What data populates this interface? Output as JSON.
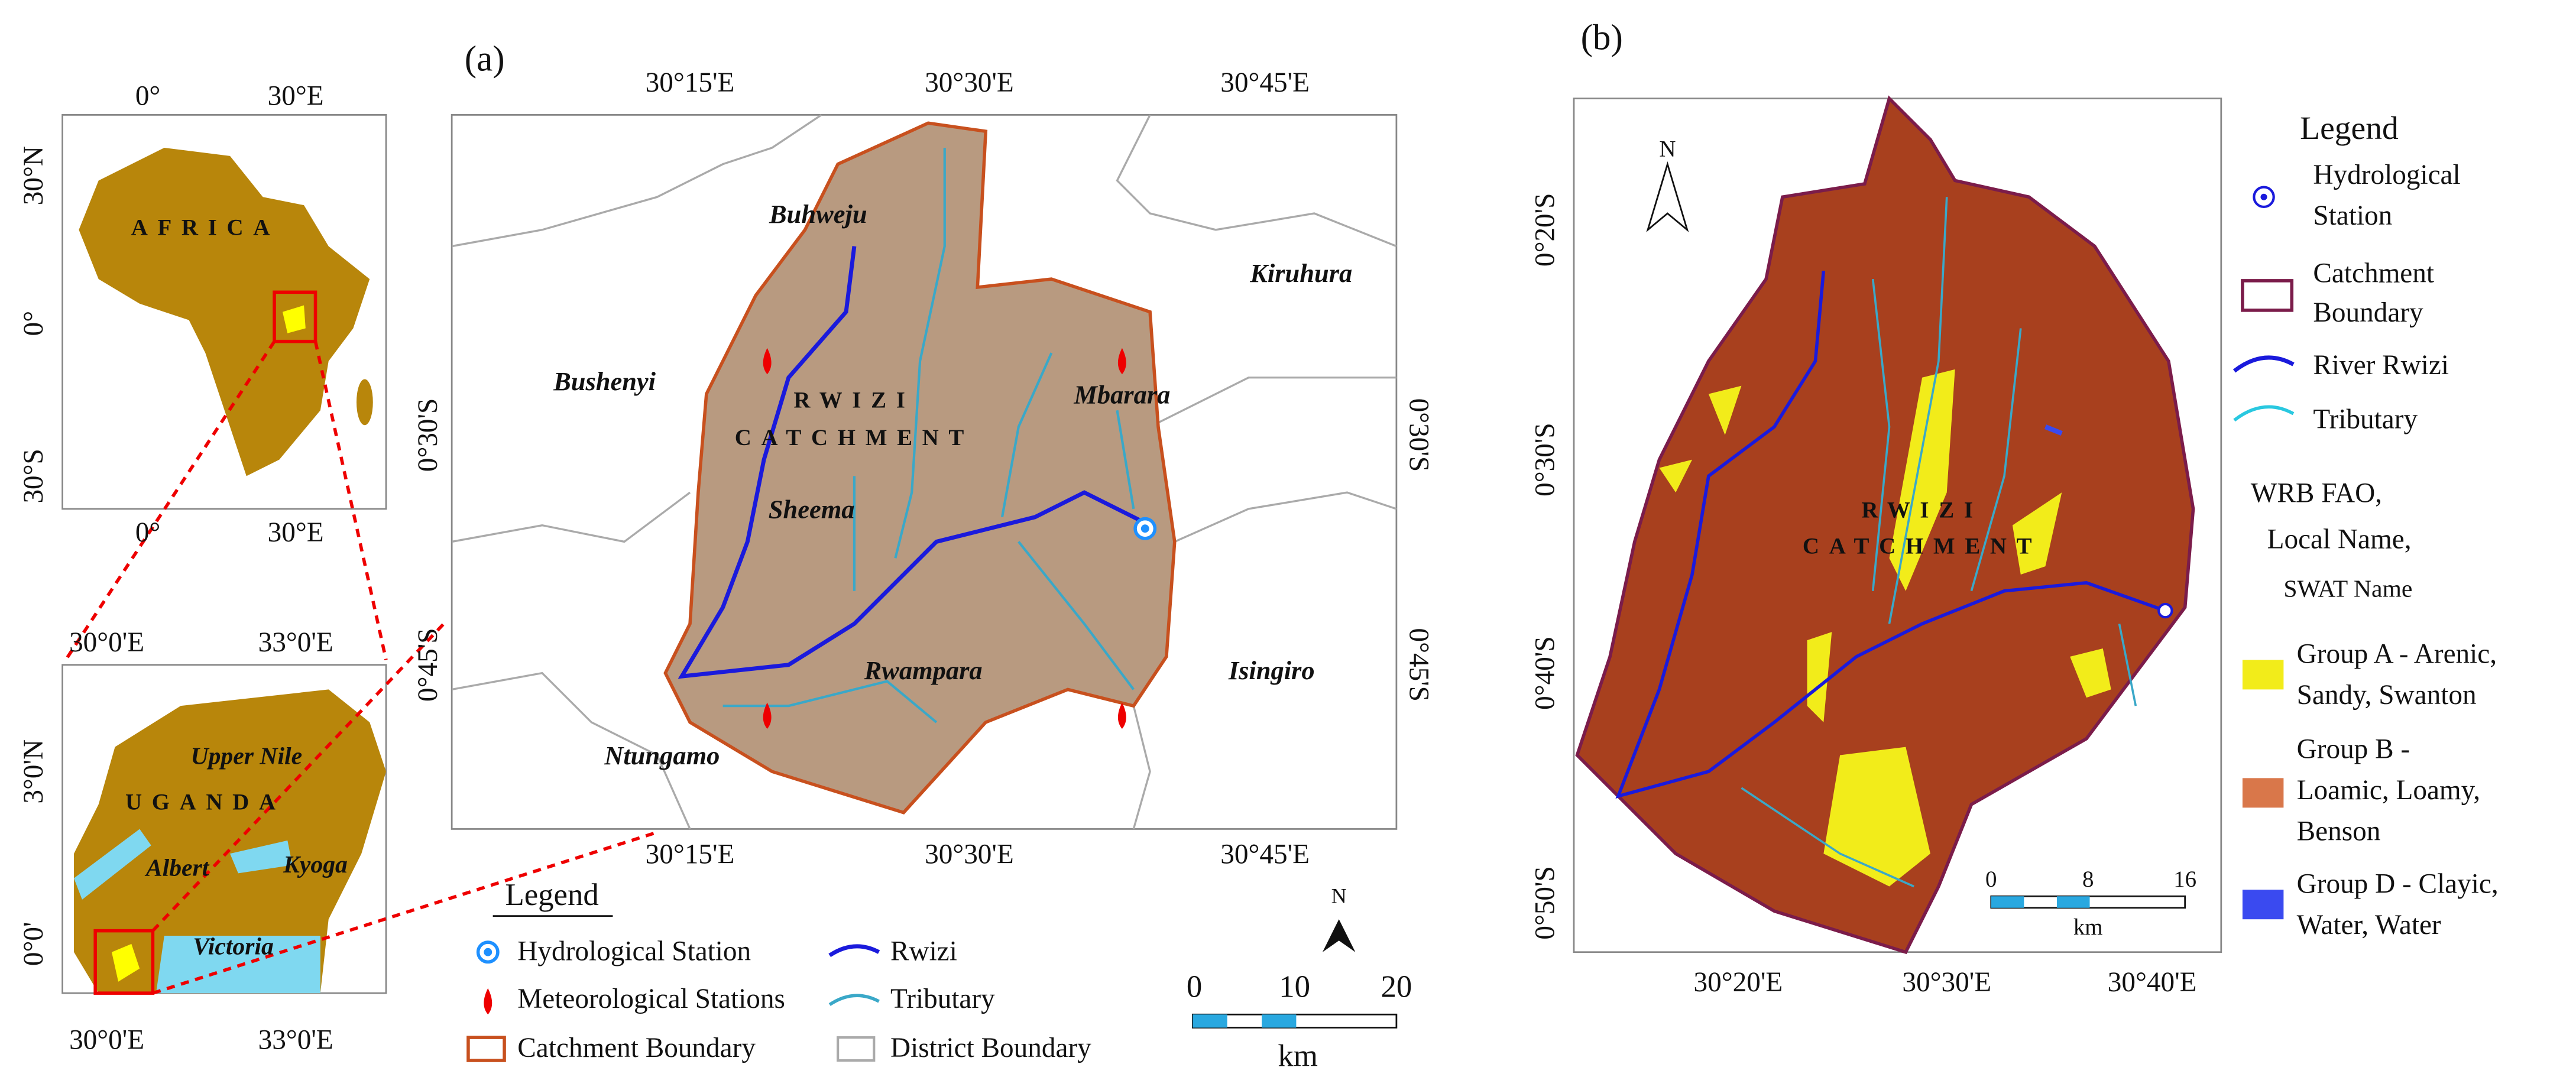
{
  "panel_a": {
    "label": "(a)",
    "africa_inset": {
      "top_ticks": [
        "0°",
        "30°E"
      ],
      "bottom_ticks": [
        "0°",
        "30°E"
      ],
      "left_ticks": [
        "30°N",
        "0°",
        "30°S"
      ],
      "label": "AFRICA"
    },
    "uganda_inset": {
      "top_ticks": [
        "30°0'E",
        "33°0'E"
      ],
      "bottom_ticks": [
        "30°0'E",
        "33°0'E"
      ],
      "left_ticks": [
        "3°0'N",
        "0°0'"
      ],
      "country": "UGANDA",
      "places": [
        "Upper Nile",
        "Albert",
        "Kyoga",
        "Victoria"
      ]
    },
    "main_map": {
      "top_ticks": [
        "30°15'E",
        "30°30'E",
        "30°45'E"
      ],
      "bottom_ticks": [
        "30°15'E",
        "30°30'E",
        "30°45'E"
      ],
      "left_ticks": [
        "0°30'S",
        "0°45'S"
      ],
      "right_ticks": [
        "0°30'S",
        "0°45'S"
      ],
      "districts": [
        "Buhweju",
        "Kiruhura",
        "Bushenyi",
        "Mbarara",
        "Sheema",
        "Rwampara",
        "Isingiro",
        "Ntungamo"
      ],
      "catchment_label": [
        "RWIZI",
        "CATCHMENT"
      ],
      "north": "N"
    },
    "legend": {
      "title": "Legend",
      "items": [
        "Hydrological Station",
        "Rwizi",
        "Meteorological Stations",
        "Tributary",
        "Catchment Boundary",
        "District Boundary"
      ]
    },
    "scale_bar": {
      "ticks": [
        0,
        10,
        20
      ],
      "unit": "km"
    }
  },
  "panel_b": {
    "label": "(b)",
    "left_ticks": [
      "0°20'S",
      "0°30'S",
      "0°40'S",
      "0°50'S"
    ],
    "bottom_ticks": [
      "30°20'E",
      "30°30'E",
      "30°40'E"
    ],
    "catchment_label": [
      "RWIZI",
      "CATCHMENT"
    ],
    "north": "N",
    "scale_bar": {
      "ticks": [
        0,
        8,
        16
      ],
      "unit": "km"
    },
    "legend": {
      "title": "Legend",
      "station": [
        "Hydrological",
        "Station"
      ],
      "boundary": [
        "Catchment",
        "Boundary"
      ],
      "river": "River Rwizi",
      "tributary": "Tributary",
      "soil_title": [
        "WRB FAO,",
        "Local Name,",
        "SWAT Name"
      ],
      "group_a": [
        "Group A - Arenic,",
        "Sandy, Swanton"
      ],
      "group_b": [
        "Group B -",
        "Loamic, Loamy,",
        "Benson"
      ],
      "group_d": [
        "Group D - Clayic,",
        "Water, Water"
      ]
    }
  }
}
